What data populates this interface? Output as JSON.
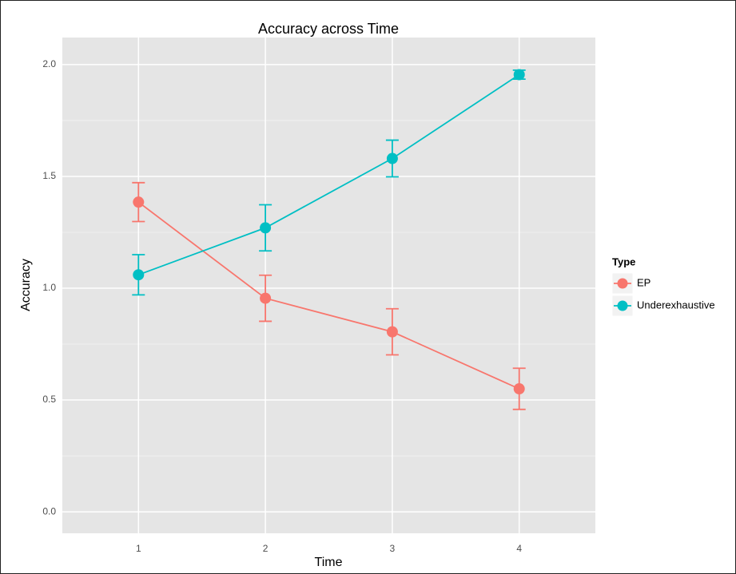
{
  "chart_data": {
    "type": "line",
    "title": "Accuracy across Time",
    "x_label": "Time",
    "y_label": "Accuracy",
    "x": [
      1,
      2,
      3,
      4
    ],
    "series": [
      {
        "name": "EP",
        "color": "#F8766D",
        "values": [
          1.385,
          0.955,
          0.805,
          0.55
        ],
        "errors": [
          0.087,
          0.103,
          0.103,
          0.092
        ]
      },
      {
        "name": "Underexhaustive",
        "color": "#00BFC4",
        "values": [
          1.06,
          1.27,
          1.58,
          1.955
        ],
        "errors": [
          0.09,
          0.103,
          0.082,
          0.02
        ]
      }
    ],
    "legend_title": "Type",
    "legend_position": "right",
    "xlim": [
      0.4,
      4.6
    ],
    "ylim": [
      -0.096,
      2.121
    ],
    "xticks": [
      1,
      2,
      3,
      4
    ],
    "yticks": [
      {
        "value": 0,
        "label": "0.0"
      },
      {
        "value": 0.5,
        "label": "0.5"
      },
      {
        "value": 1,
        "label": "1.0"
      },
      {
        "value": 1.5,
        "label": "1.5"
      },
      {
        "value": 2,
        "label": "2.0"
      }
    ],
    "grid": true
  }
}
